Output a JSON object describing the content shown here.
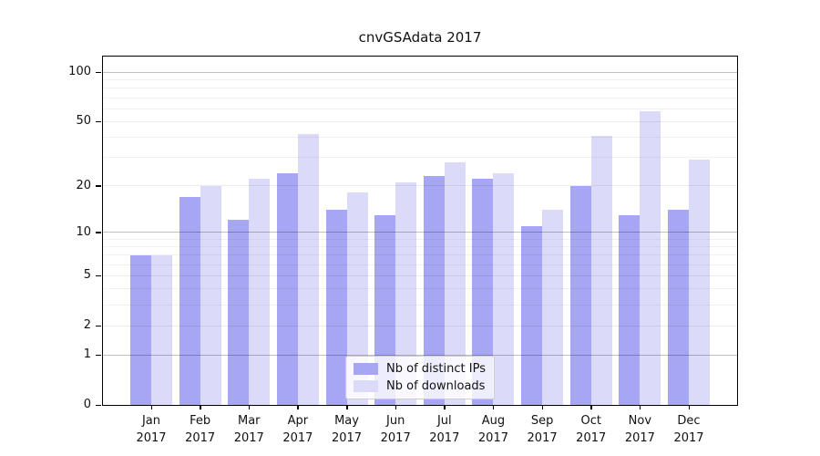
{
  "chart_data": {
    "type": "bar",
    "title": "cnvGSAdata 2017",
    "months": [
      "Jan",
      "Feb",
      "Mar",
      "Apr",
      "May",
      "Jun",
      "Jul",
      "Aug",
      "Sep",
      "Oct",
      "Nov",
      "Dec"
    ],
    "year": "2017",
    "categories": [
      "Jan 2017",
      "Feb 2017",
      "Mar 2017",
      "Apr 2017",
      "May 2017",
      "Jun 2017",
      "Jul 2017",
      "Aug 2017",
      "Sep 2017",
      "Oct 2017",
      "Nov 2017",
      "Dec 2017"
    ],
    "series": [
      {
        "name": "Nb of distinct IPs",
        "color": "#a6a6f4",
        "values": [
          7,
          17,
          12,
          24,
          14,
          13,
          23,
          22,
          11,
          20,
          13,
          14
        ]
      },
      {
        "name": "Nb of downloads",
        "color": "#dbdbf9",
        "values": [
          7,
          20,
          22,
          42,
          18,
          21,
          28,
          24,
          14,
          41,
          58,
          29
        ]
      }
    ],
    "y_axis": {
      "scale": "symlog",
      "tick_labels": [
        0,
        1,
        2,
        5,
        10,
        20,
        50,
        100
      ],
      "major_gridlines": [
        1,
        10,
        100
      ],
      "minor_gridlines": [
        2,
        3,
        4,
        5,
        6,
        7,
        8,
        9,
        20,
        30,
        40,
        50,
        60,
        70,
        80,
        90
      ],
      "max": 125
    },
    "legend_position": "lower center",
    "grid": true,
    "colors": {
      "background": "#ffffff",
      "spine": "#000000",
      "text": "#111111"
    }
  }
}
